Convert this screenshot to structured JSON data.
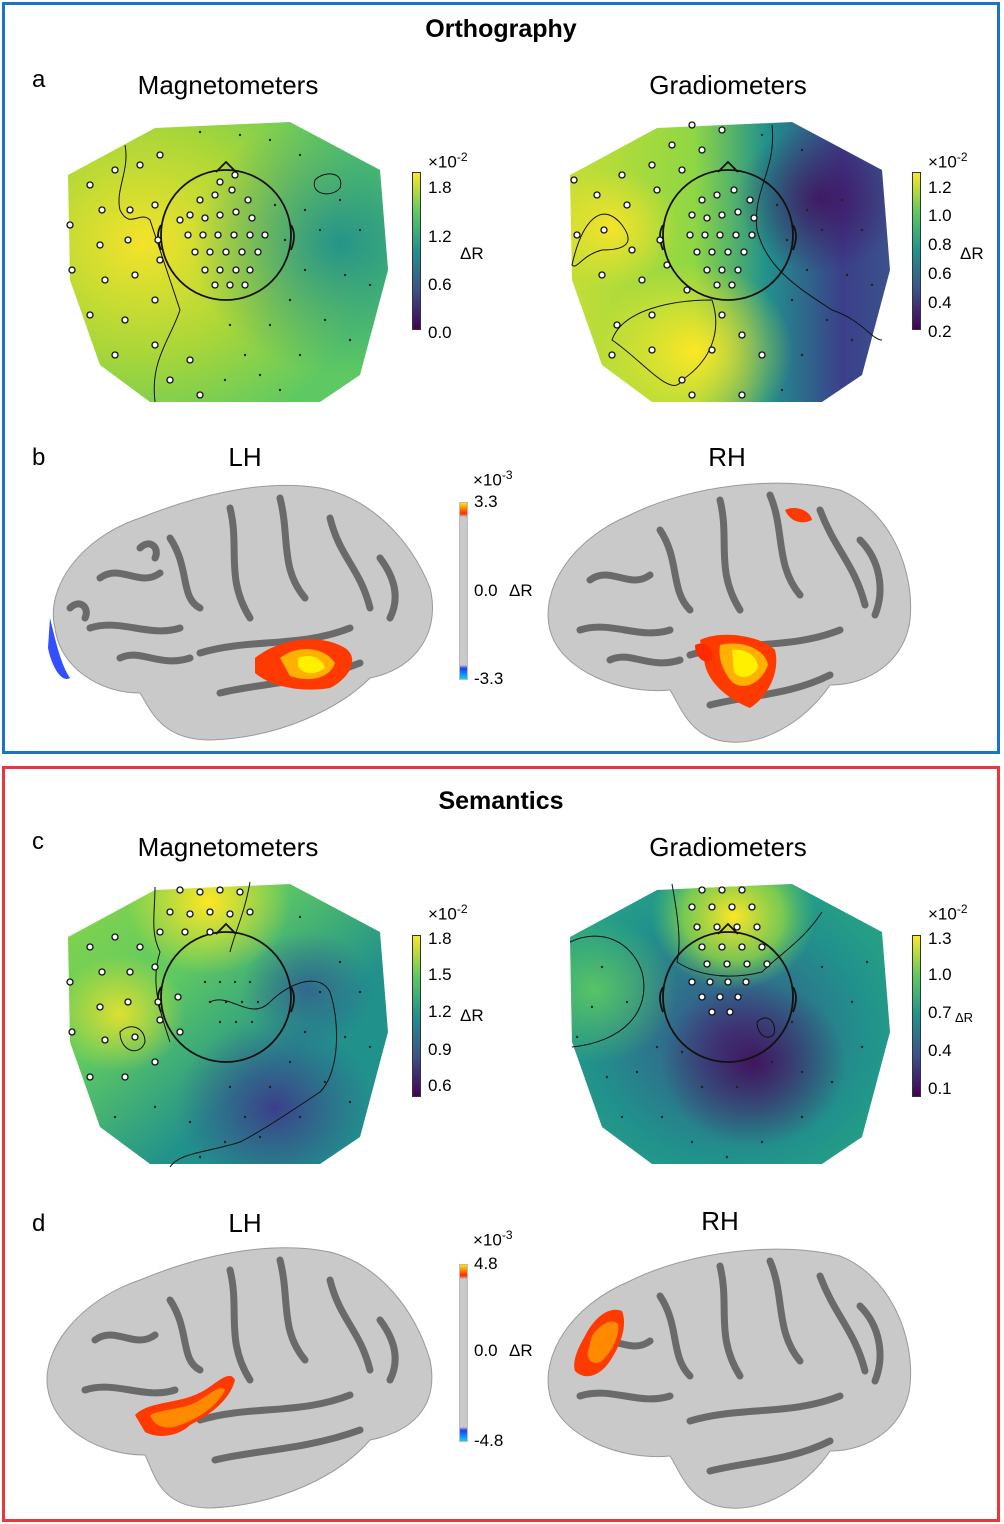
{
  "colors": {
    "orthography_border": "#1a73c8",
    "semantics_border": "#e8383d",
    "viridis": [
      "#440154",
      "#3b528b",
      "#21918c",
      "#5ec962",
      "#fde725"
    ],
    "brain_gray_dark": "#5a5a5a",
    "brain_gray_light": "#c9c9c9",
    "activation_hot": [
      "#ff2a00",
      "#ff8a00",
      "#ffe600"
    ]
  },
  "orthography": {
    "title": "Orthography",
    "panel_a": {
      "letter": "a",
      "left": {
        "title": "Magnetometers",
        "colorbar": {
          "exponent_base": "×10",
          "exponent": "-2",
          "ticks": [
            "1.8",
            "1.2",
            "0.6",
            "0.0"
          ],
          "label": "ΔR"
        }
      },
      "right": {
        "title": "Gradiometers",
        "colorbar": {
          "exponent_base": "×10",
          "exponent": "-2",
          "ticks": [
            "1.2",
            "1.0",
            "0.8",
            "0.6",
            "0.4",
            "0.2"
          ],
          "label": "ΔR"
        }
      }
    },
    "panel_b": {
      "letter": "b",
      "left_title": "LH",
      "right_title": "RH",
      "colorbar": {
        "exponent_base": "×10",
        "exponent": "-3",
        "ticks": [
          "3.3",
          "0.0",
          "-3.3"
        ],
        "label": "ΔR"
      }
    }
  },
  "semantics": {
    "title": "Semantics",
    "panel_c": {
      "letter": "c",
      "left": {
        "title": "Magnetometers",
        "colorbar": {
          "exponent_base": "×10",
          "exponent": "-2",
          "ticks": [
            "1.8",
            "1.5",
            "1.2",
            "0.9",
            "0.6"
          ],
          "label": "ΔR"
        }
      },
      "right": {
        "title": "Gradiometers",
        "colorbar": {
          "exponent_base": "×10",
          "exponent": "-2",
          "ticks": [
            "1.3",
            "1.0",
            "0.7",
            "0.4",
            "0.1"
          ],
          "label": "ΔR"
        }
      }
    },
    "panel_d": {
      "letter": "d",
      "left_title": "LH",
      "right_title": "RH",
      "colorbar": {
        "exponent_base": "×10",
        "exponent": "-3",
        "ticks": [
          "4.8",
          "0.0",
          "-4.8"
        ],
        "label": "ΔR"
      }
    }
  }
}
